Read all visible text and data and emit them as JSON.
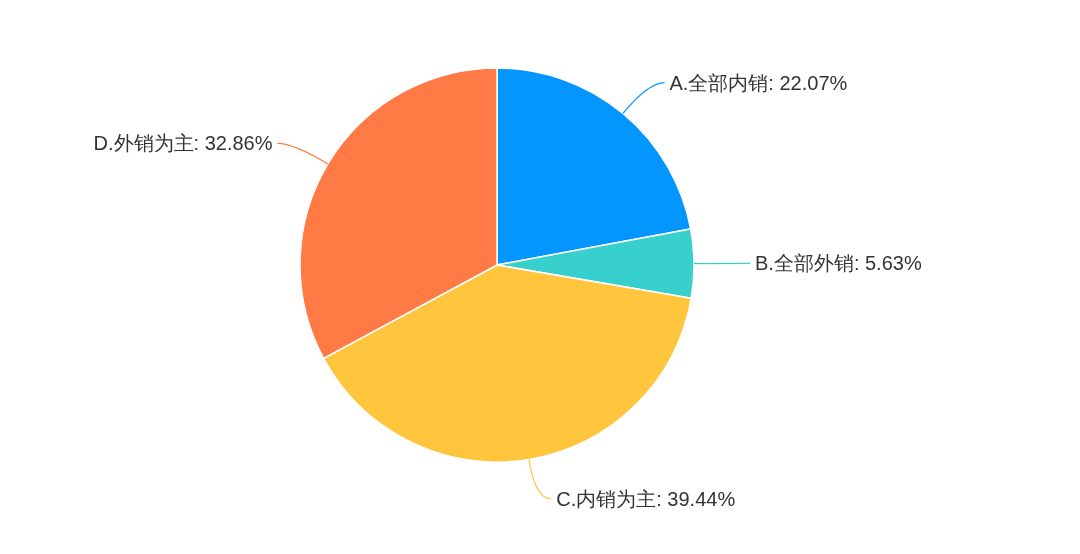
{
  "chart_data": {
    "type": "pie",
    "categories": [
      "A.全部内销",
      "B.全部外销",
      "C.内销为主",
      "D.外销为主"
    ],
    "values": [
      22.07,
      5.63,
      39.44,
      32.86
    ],
    "value_labels": [
      "22.07%",
      "5.63%",
      "39.44%",
      "32.86%"
    ],
    "colors": [
      "#0496ff",
      "#37d0cc",
      "#ffc53d",
      "#ff7a45"
    ]
  }
}
